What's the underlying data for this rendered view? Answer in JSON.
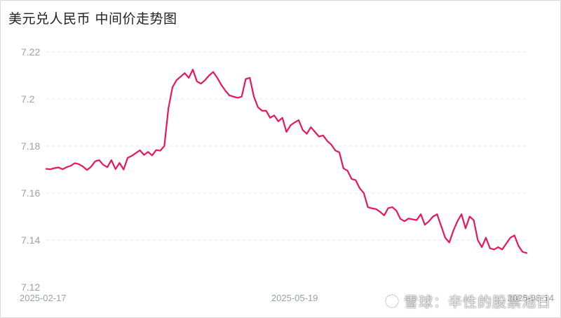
{
  "title": "美元兑人民币 中间价走势图",
  "chart_data": {
    "type": "line",
    "y_ticks": [
      "7.22",
      "7.2",
      "7.18",
      "7.16",
      "7.14",
      "7.12"
    ],
    "y_tick_values": [
      7.22,
      7.2,
      7.18,
      7.16,
      7.14,
      7.12
    ],
    "ylim": [
      7.12,
      7.22
    ],
    "x_tick_labels": [
      "2025-02-17",
      "2025-05-19",
      "2025-08-14"
    ],
    "x_tick_index": [
      0,
      61,
      119
    ],
    "grid": true,
    "series": [
      {
        "color": "#e8175d",
        "values": [
          7.1703,
          7.1701,
          7.1706,
          7.1709,
          7.1701,
          7.171,
          7.1716,
          7.1727,
          7.1723,
          7.1713,
          7.1698,
          7.1712,
          7.1735,
          7.174,
          7.172,
          7.171,
          7.174,
          7.1702,
          7.1728,
          7.17,
          7.175,
          7.1758,
          7.177,
          7.1782,
          7.1762,
          7.1775,
          7.176,
          7.1783,
          7.178,
          7.18,
          7.196,
          7.205,
          7.208,
          7.2095,
          7.211,
          7.209,
          7.2125,
          7.2075,
          7.2065,
          7.208,
          7.21,
          7.2115,
          7.209,
          7.206,
          7.2035,
          7.2015,
          7.201,
          7.2005,
          7.201,
          7.2085,
          7.209,
          7.201,
          7.1965,
          7.195,
          7.195,
          7.192,
          7.193,
          7.1905,
          7.192,
          7.186,
          7.1888,
          7.19,
          7.191,
          7.1868,
          7.1852,
          7.188,
          7.186,
          7.184,
          7.1845,
          7.1822,
          7.1806,
          7.1781,
          7.1773,
          7.1705,
          7.1695,
          7.166,
          7.1655,
          7.162,
          7.16,
          7.154,
          7.1535,
          7.1532,
          7.152,
          7.1505,
          7.1536,
          7.154,
          7.1525,
          7.149,
          7.148,
          7.1492,
          7.1488,
          7.1485,
          7.151,
          7.1465,
          7.148,
          7.15,
          7.151,
          7.146,
          7.141,
          7.139,
          7.144,
          7.148,
          7.151,
          7.145,
          7.15,
          7.1485,
          7.14,
          7.137,
          7.141,
          7.1365,
          7.136,
          7.137,
          7.136,
          7.1385,
          7.141,
          7.142,
          7.1375,
          7.135,
          7.1345
        ]
      }
    ]
  },
  "watermark": {
    "logo_icon": "snowball-logo-icon",
    "text": "雪球：辛性的股票池日"
  }
}
